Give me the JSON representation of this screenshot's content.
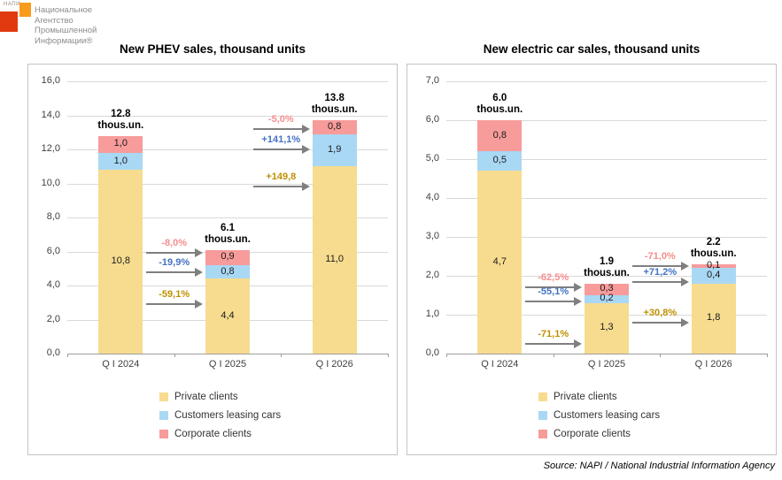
{
  "logo": {
    "brand_small": "НАПИ",
    "name_lines": [
      "Национальное",
      "Агентство",
      "Промышленной",
      "Информации®"
    ],
    "colors": {
      "red": "#e23a10",
      "orange": "#f89b1c"
    }
  },
  "source_note": "Source: NAPI / National Industrial Information Agency",
  "chart_data": [
    {
      "type": "bar",
      "stacked": true,
      "title": "New PHEV sales, thousand units",
      "categories": [
        "Q I 2024",
        "Q I 2025",
        "Q I 2026"
      ],
      "ylim": [
        0,
        16
      ],
      "ytick_step": 2,
      "ytick_labels": [
        "0,0",
        "2,0",
        "4,0",
        "6,0",
        "8,0",
        "10,0",
        "12,0",
        "14,0",
        "16,0"
      ],
      "grid": true,
      "legend_position": "inside-bottom",
      "unit_suffix": "thous.un.",
      "series": [
        {
          "name": "Private clients",
          "color": "#f7dc8f",
          "values": [
            10.8,
            4.4,
            11.0
          ],
          "value_labels": [
            "10,8",
            "4,4",
            "11,0"
          ]
        },
        {
          "name": "Customers leasing cars",
          "color": "#a9d8f5",
          "values": [
            1.0,
            0.8,
            1.9
          ],
          "value_labels": [
            "1,0",
            "0,8",
            "1,9"
          ]
        },
        {
          "name": "Corporate clients",
          "color": "#f79b9b",
          "values": [
            1.0,
            0.9,
            0.8
          ],
          "value_labels": [
            "1,0",
            "0,9",
            "0,8"
          ]
        }
      ],
      "totals": [
        {
          "value": 12.8,
          "label": "12.8"
        },
        {
          "value": 6.1,
          "label": "6.1"
        },
        {
          "value": 13.8,
          "label": "13.8"
        }
      ],
      "arrows": [
        {
          "from_cat": 0,
          "to_cat": 1,
          "label": "-8,0%",
          "color": "#f78d8d",
          "y": 5.9
        },
        {
          "from_cat": 0,
          "to_cat": 1,
          "label": "-19,9%",
          "color": "#4472c4",
          "y": 4.8
        },
        {
          "from_cat": 0,
          "to_cat": 1,
          "label": "-59,1%",
          "color": "#bf9000",
          "y": 2.9
        },
        {
          "from_cat": 1,
          "to_cat": 2,
          "label": "-5,0%",
          "color": "#f78d8d",
          "y": 13.2
        },
        {
          "from_cat": 1,
          "to_cat": 2,
          "label": "+141,1%",
          "color": "#4472c4",
          "y": 12.0
        },
        {
          "from_cat": 1,
          "to_cat": 2,
          "label": "+149,8",
          "color": "#bf9000",
          "y": 9.8
        }
      ]
    },
    {
      "type": "bar",
      "stacked": true,
      "title": "New electric car sales, thousand units",
      "categories": [
        "Q I 2024",
        "Q I 2025",
        "Q I 2026"
      ],
      "ylim": [
        0,
        7
      ],
      "ytick_step": 1,
      "ytick_labels": [
        "0,0",
        "1,0",
        "2,0",
        "3,0",
        "4,0",
        "5,0",
        "6,0",
        "7,0"
      ],
      "grid": true,
      "legend_position": "inside-bottom",
      "unit_suffix": "thous.un.",
      "series": [
        {
          "name": "Private clients",
          "color": "#f7dc8f",
          "values": [
            4.7,
            1.3,
            1.8
          ],
          "value_labels": [
            "4,7",
            "1,3",
            "1,8"
          ]
        },
        {
          "name": "Customers leasing cars",
          "color": "#a9d8f5",
          "values": [
            0.5,
            0.2,
            0.4
          ],
          "value_labels": [
            "0,5",
            "0,2",
            "0,4"
          ]
        },
        {
          "name": "Corporate clients",
          "color": "#f79b9b",
          "values": [
            0.8,
            0.3,
            0.1
          ],
          "value_labels": [
            "0,8",
            "0,3",
            "0,1"
          ]
        }
      ],
      "totals": [
        {
          "value": 6.0,
          "label": "6.0"
        },
        {
          "value": 1.9,
          "label": "1.9"
        },
        {
          "value": 2.2,
          "label": "2.2"
        }
      ],
      "arrows": [
        {
          "from_cat": 0,
          "to_cat": 1,
          "label": "-62,5%",
          "color": "#f78d8d",
          "y": 1.7
        },
        {
          "from_cat": 0,
          "to_cat": 1,
          "label": "-55,1%",
          "color": "#4472c4",
          "y": 1.35
        },
        {
          "from_cat": 0,
          "to_cat": 1,
          "label": "-71,1%",
          "color": "#bf9000",
          "y": 0.25
        },
        {
          "from_cat": 1,
          "to_cat": 2,
          "label": "-71,0%",
          "color": "#f78d8d",
          "y": 2.25
        },
        {
          "from_cat": 1,
          "to_cat": 2,
          "label": "+71,2%",
          "color": "#4472c4",
          "y": 1.85
        },
        {
          "from_cat": 1,
          "to_cat": 2,
          "label": "+30,8%",
          "color": "#bf9000",
          "y": 0.8
        }
      ]
    }
  ]
}
